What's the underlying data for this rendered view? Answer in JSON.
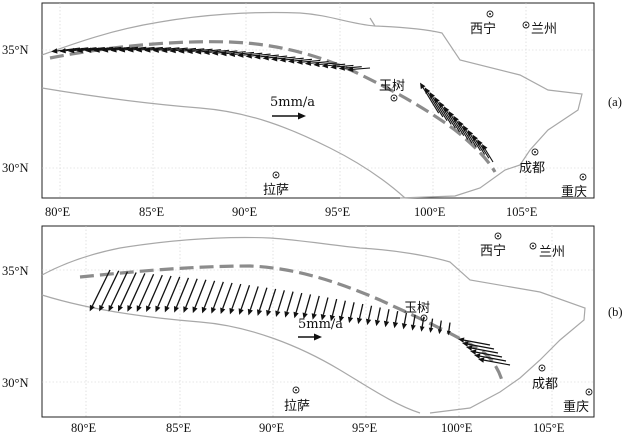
{
  "panels": [
    {
      "id": "a",
      "label": "(a)",
      "lat_ticks": [
        "35°N",
        "30°N"
      ],
      "lon_ticks": [
        "80°E",
        "85°E",
        "90°E",
        "95°E",
        "100°E",
        "105°E"
      ],
      "scale_text": "5mm/a",
      "cities": [
        {
          "name": "西宁",
          "lon": 101.8,
          "lat": 36.6
        },
        {
          "name": "兰州",
          "lon": 103.8,
          "lat": 36.0
        },
        {
          "name": "玉树",
          "lon": 97.0,
          "lat": 33.0
        },
        {
          "name": "拉萨",
          "lon": 91.1,
          "lat": 29.7
        },
        {
          "name": "成都",
          "lon": 104.1,
          "lat": 30.7
        },
        {
          "name": "重庆",
          "lon": 106.5,
          "lat": 29.6
        }
      ]
    },
    {
      "id": "b",
      "label": "(b)",
      "lat_ticks": [
        "35°N",
        "30°N"
      ],
      "lon_ticks": [
        "80°E",
        "85°E",
        "90°E",
        "95°E",
        "100°E",
        "105°E"
      ],
      "scale_text": "5mm/a",
      "cities": [
        {
          "name": "西宁",
          "lon": 101.8,
          "lat": 36.6
        },
        {
          "name": "兰州",
          "lon": 103.8,
          "lat": 36.0
        },
        {
          "name": "玉树",
          "lon": 97.0,
          "lat": 33.0
        },
        {
          "name": "拉萨",
          "lon": 91.1,
          "lat": 29.7
        },
        {
          "name": "成都",
          "lon": 104.1,
          "lat": 30.7
        },
        {
          "name": "重庆",
          "lon": 106.5,
          "lat": 29.6
        }
      ]
    }
  ],
  "colors": {
    "boundary": "#a8a8a8",
    "fault": "#8c8c8c",
    "arrow": "#111111",
    "grid": "#cfcfcf"
  }
}
